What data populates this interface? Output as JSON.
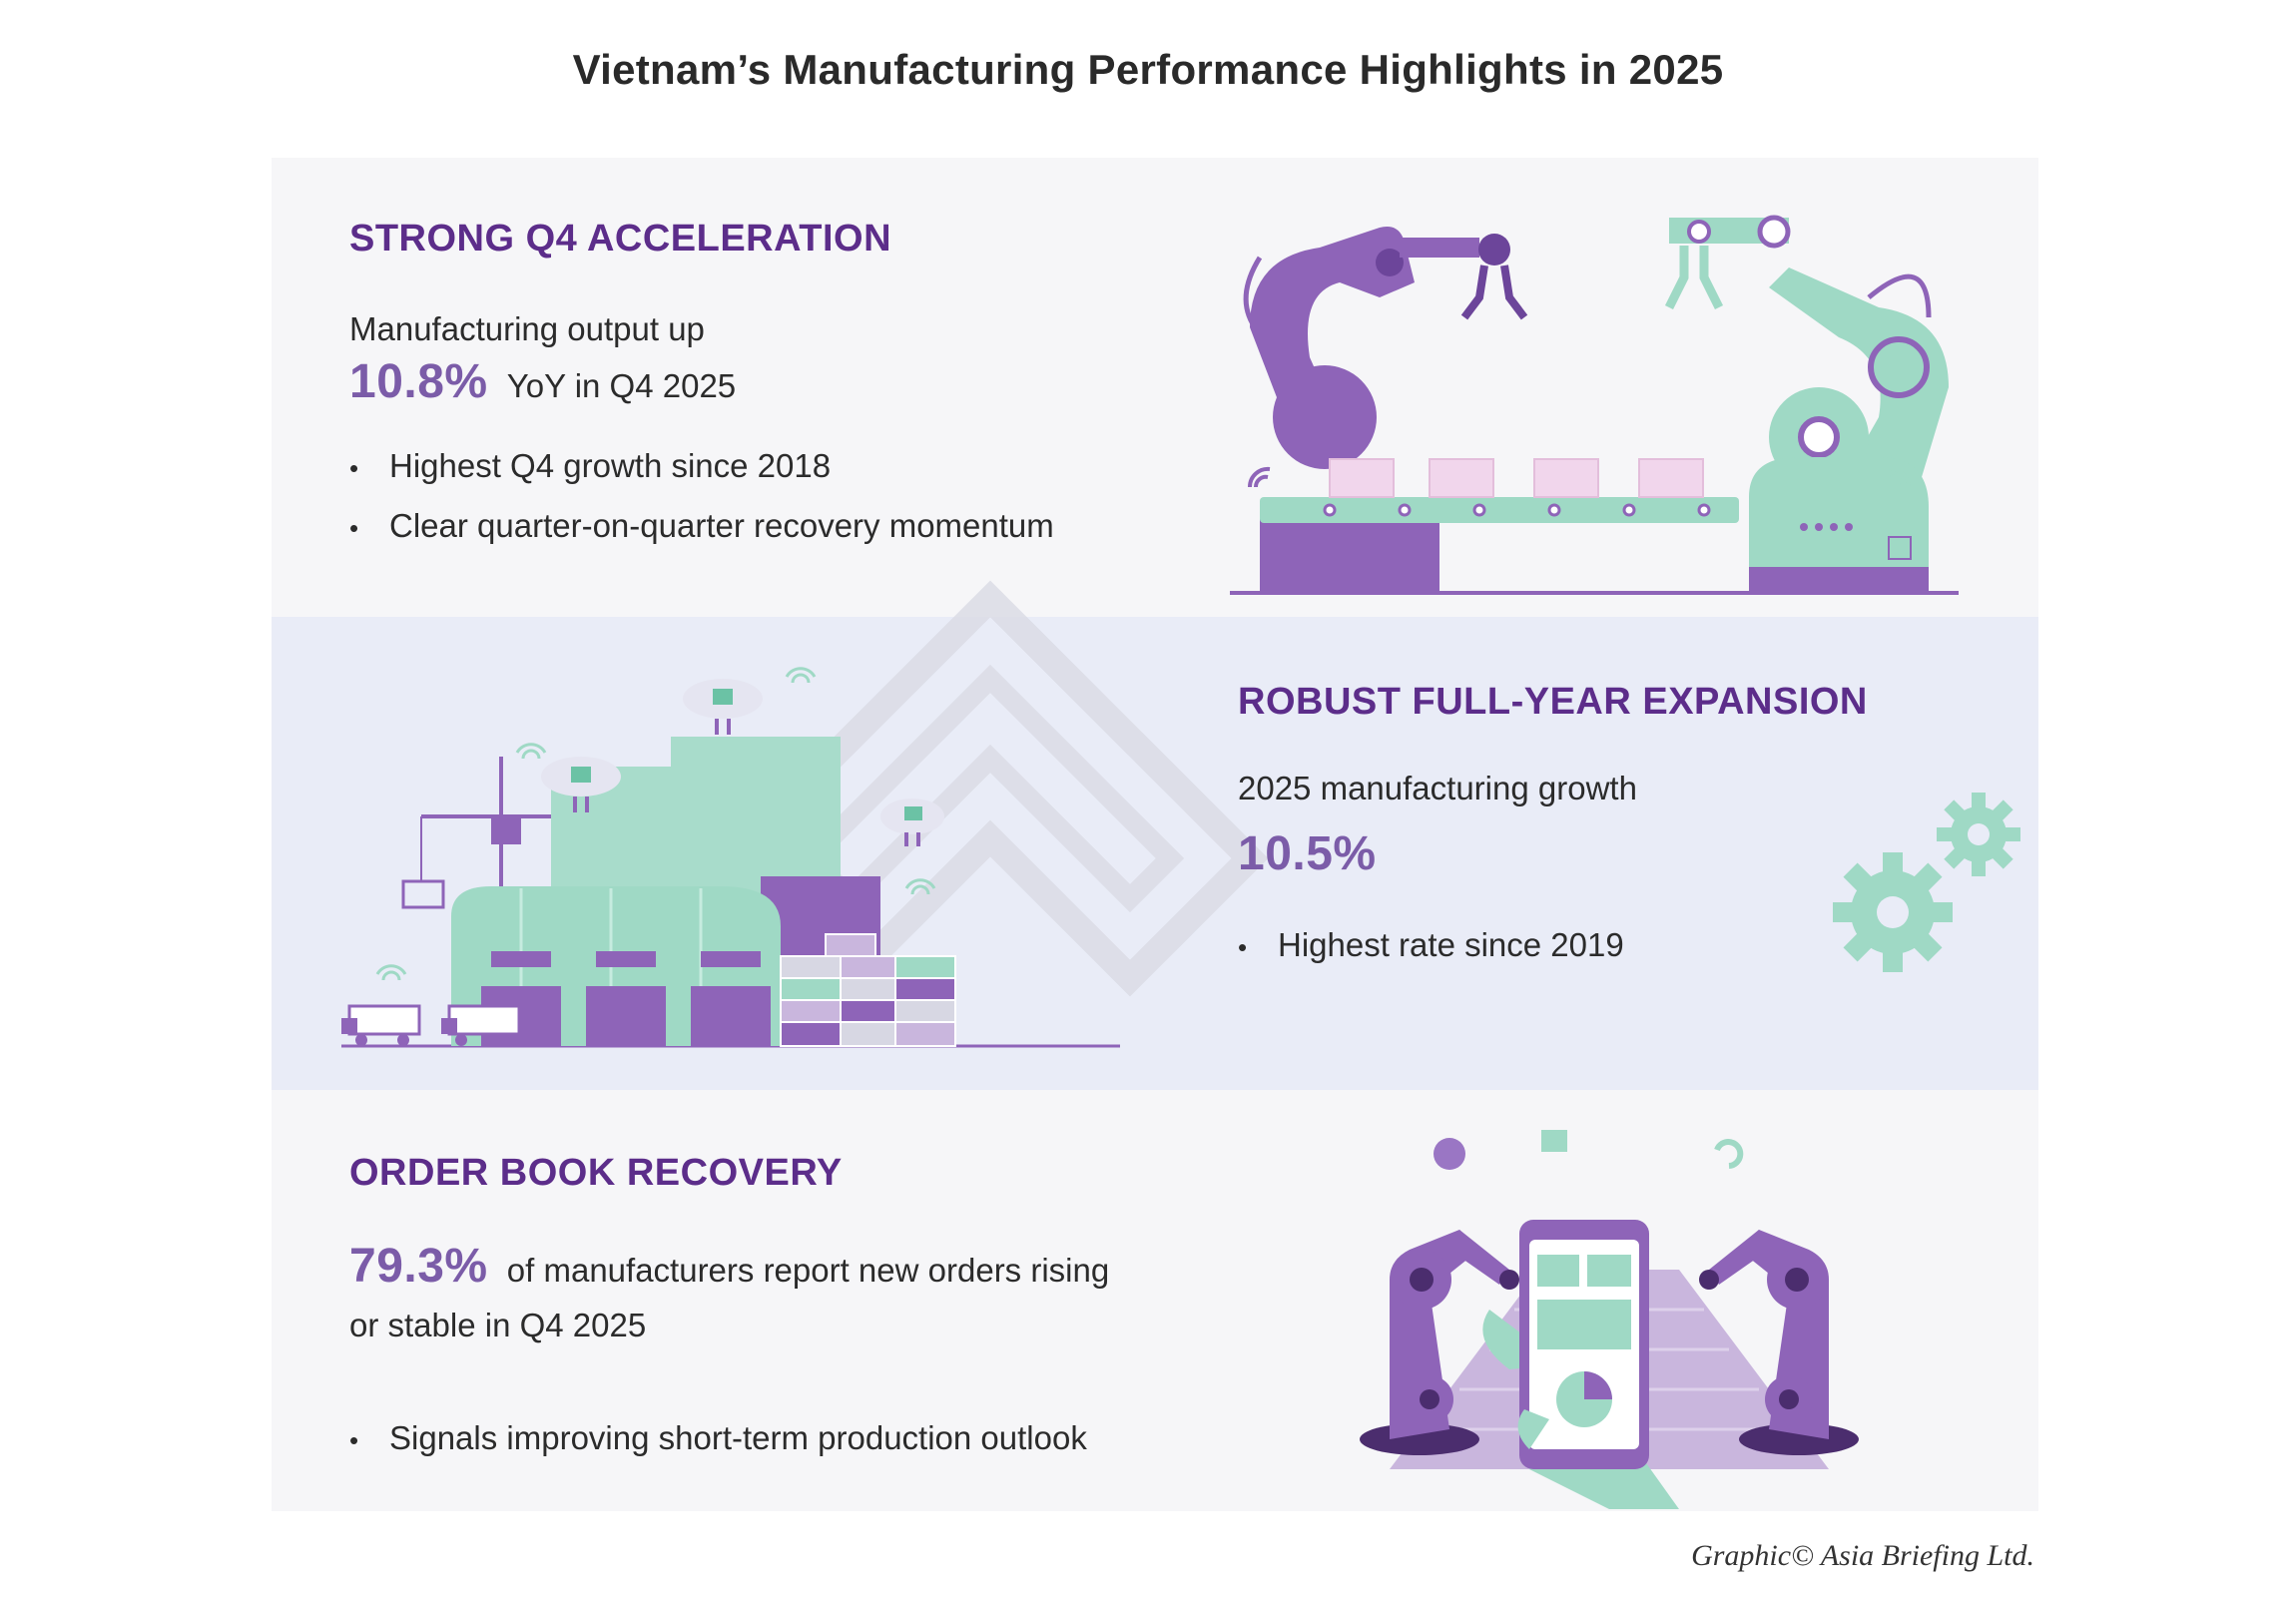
{
  "title": "Vietnam’s Manufacturing Performance Highlights in 2025",
  "sections": [
    {
      "heading": "STRONG Q4 ACCELERATION",
      "lead": "Manufacturing output up",
      "figure": "10.8%",
      "figure_suffix": "YoY in Q4 2025",
      "bullets": [
        "Highest Q4 growth since 2018",
        "Clear quarter-on-quarter recovery momentum"
      ],
      "illustration": "robot-arms-conveyor-icon"
    },
    {
      "heading": "ROBUST FULL-YEAR EXPANSION",
      "lead": "2025 manufacturing growth",
      "figure": "10.5%",
      "bullets": [
        "Highest rate since 2019"
      ],
      "illustration": "factory-warehouse-icon"
    },
    {
      "heading": "ORDER BOOK RECOVERY",
      "figure": "79.3%",
      "figure_suffix": "of manufacturers report new orders rising",
      "figure_suffix_line2": "or stable in Q4 2025",
      "bullets": [
        "Signals improving short-term production outlook"
      ],
      "illustration": "smartphone-robot-arms-icon"
    }
  ],
  "credit": "Graphic© Asia Briefing Ltd.",
  "colors": {
    "heading": "#5c2d8a",
    "figure": "#7b5ca8",
    "purple": "#8e64b8",
    "mint": "#9fd9c5",
    "panel_light": "#f6f6f8",
    "panel_blue": "#e9ecf7"
  }
}
